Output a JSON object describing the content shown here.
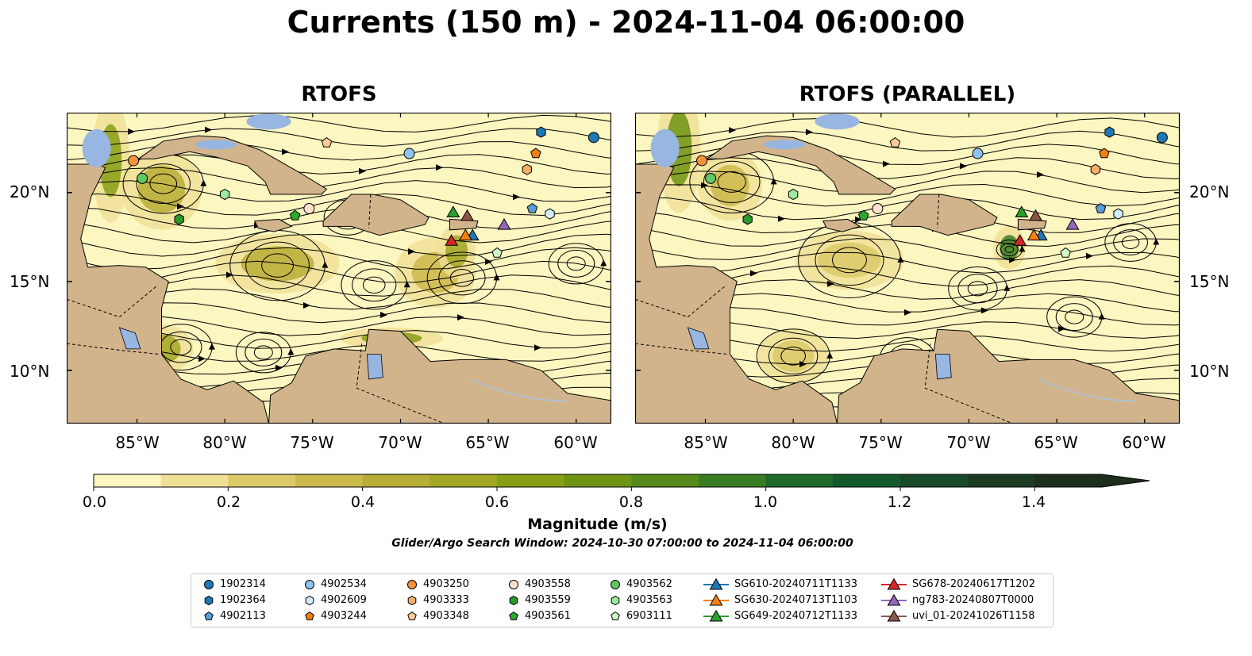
{
  "title": "Currents (150 m) - 2024-11-04 06:00:00",
  "panels": [
    {
      "title": "RTOFS"
    },
    {
      "title": "RTOFS (PARALLEL)"
    }
  ],
  "lon_ticks": [
    "85°W",
    "80°W",
    "75°W",
    "70°W",
    "65°W",
    "60°W"
  ],
  "lat_ticks": [
    "20°N",
    "15°N",
    "10°N"
  ],
  "colorbar": {
    "label": "Magnitude (m/s)",
    "ticks": [
      "0.0",
      "0.2",
      "0.4",
      "0.6",
      "0.8",
      "1.0",
      "1.2",
      "1.4"
    ],
    "range": [
      0,
      1.5
    ],
    "extend": "max",
    "colors": [
      "#fcf6c0",
      "#efe095",
      "#dcc968",
      "#ccb94b",
      "#b8ad35",
      "#a2a623",
      "#889e14",
      "#6f9312",
      "#558a1a",
      "#3a7c22",
      "#1f6b2b",
      "#12592b",
      "#174a29",
      "#1b3b23",
      "#1c2e1c"
    ]
  },
  "search_window": "Glider/Argo Search Window: 2024-10-30 07:00:00 to 2024-11-04 06:00:00",
  "colors": {
    "land": "#d2b48c",
    "lake": "#97b6e1",
    "ocean_low": "#fcf6c0"
  },
  "legend": [
    {
      "label": "1902314",
      "marker": "circle",
      "color": "#1f77b4"
    },
    {
      "label": "1902364",
      "marker": "hexagon",
      "color": "#1f77b4"
    },
    {
      "label": "4902113",
      "marker": "pentagon",
      "color": "#5b9bd5"
    },
    {
      "label": "4902534",
      "marker": "circle",
      "color": "#8ec4ef"
    },
    {
      "label": "4902609",
      "marker": "hexagon",
      "color": "#d4ebfb"
    },
    {
      "label": "4903244",
      "marker": "pentagon",
      "color": "#f07f16"
    },
    {
      "label": "4903250",
      "marker": "circle",
      "color": "#f5933b"
    },
    {
      "label": "4903333",
      "marker": "hexagon",
      "color": "#f6ad6c"
    },
    {
      "label": "4903348",
      "marker": "pentagon",
      "color": "#fcc99a"
    },
    {
      "label": "4903558",
      "marker": "circle",
      "color": "#fde0cc"
    },
    {
      "label": "4903559",
      "marker": "hexagon",
      "color": "#2a9a2a"
    },
    {
      "label": "4903561",
      "marker": "pentagon",
      "color": "#2ea82e"
    },
    {
      "label": "4903562",
      "marker": "circle",
      "color": "#63c863"
    },
    {
      "label": "4903563",
      "marker": "hexagon",
      "color": "#9de89d"
    },
    {
      "label": "6903111",
      "marker": "pentagon",
      "color": "#d0f8c8"
    },
    {
      "label": "SG610-20240711T1133",
      "marker": "triangle-line",
      "color": "#1f77b4"
    },
    {
      "label": "SG630-20240713T1103",
      "marker": "triangle-line",
      "color": "#ff7f0e"
    },
    {
      "label": "SG649-20240712T1133",
      "marker": "triangle-line",
      "color": "#2ca02c"
    },
    {
      "label": "SG678-20240617T1202",
      "marker": "triangle-line",
      "color": "#d62728"
    },
    {
      "label": "ng783-20240807T0000",
      "marker": "triangle-line",
      "color": "#9467bd"
    },
    {
      "label": "uvi_01-20241026T1158",
      "marker": "triangle-line",
      "color": "#8c564b"
    }
  ],
  "observations": [
    {
      "id": "1902314",
      "lon": -59,
      "lat": 23.1
    },
    {
      "id": "1902364",
      "lon": -62,
      "lat": 23.4
    },
    {
      "id": "4902113",
      "lon": -62.5,
      "lat": 19.1
    },
    {
      "id": "4902534",
      "lon": -69.5,
      "lat": 22.2
    },
    {
      "id": "4902609",
      "lon": -61.5,
      "lat": 18.8
    },
    {
      "id": "4903244",
      "lon": -62.3,
      "lat": 22.2
    },
    {
      "id": "4903250",
      "lon": -85.2,
      "lat": 21.8
    },
    {
      "id": "4903333",
      "lon": -62.8,
      "lat": 21.3
    },
    {
      "id": "4903348",
      "lon": -74.2,
      "lat": 22.8
    },
    {
      "id": "4903558",
      "lon": -75.2,
      "lat": 19.1
    },
    {
      "id": "4903559",
      "lon": -82.6,
      "lat": 18.5
    },
    {
      "id": "4903561",
      "lon": -76,
      "lat": 18.7
    },
    {
      "id": "4903562",
      "lon": -84.7,
      "lat": 20.8
    },
    {
      "id": "4903563",
      "lon": -80,
      "lat": 19.9
    },
    {
      "id": "6903111",
      "lon": -64.5,
      "lat": 16.6
    },
    {
      "id": "SG610-20240711T1133",
      "lon": -65.9,
      "lat": 17.6
    },
    {
      "id": "SG630-20240713T1103",
      "lon": -66.3,
      "lat": 17.6
    },
    {
      "id": "SG649-20240712T1133",
      "lon": -67,
      "lat": 18.9
    },
    {
      "id": "SG678-20240617T1202",
      "lon": -67.1,
      "lat": 17.3
    },
    {
      "id": "ng783-20240807T0000",
      "lon": -64.1,
      "lat": 18.2
    },
    {
      "id": "uvi_01-20241026T1158",
      "lon": -66.2,
      "lat": 18.7
    }
  ],
  "extent": {
    "lon": [
      -89,
      -58
    ],
    "lat": [
      7,
      24.5
    ]
  }
}
